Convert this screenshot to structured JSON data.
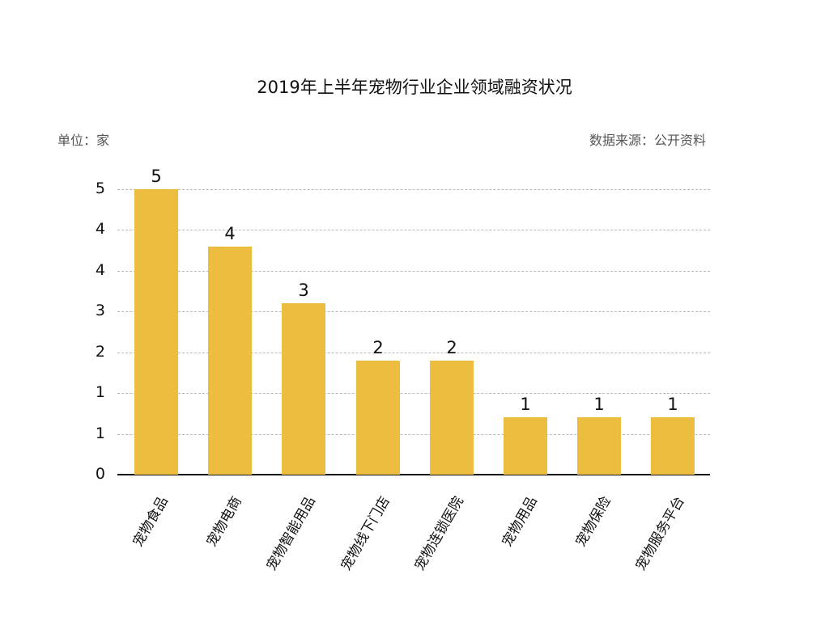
{
  "chart_data": {
    "type": "bar",
    "title": "2019年上半年宠物行业企业领域融资状况",
    "unit_label": "单位：家",
    "source_label": "数据来源：公开资料",
    "xlabel": "",
    "ylabel": "",
    "categories": [
      "宠物食品",
      "宠物电商",
      "宠物智能用品",
      "宠物线下门店",
      "宠物连锁医院",
      "宠物用品",
      "宠物保险",
      "宠物服务平台"
    ],
    "values": [
      5,
      4,
      3,
      2,
      2,
      1,
      1,
      1
    ],
    "data_labels": [
      "5",
      "4",
      "3",
      "2",
      "2",
      "1",
      "1",
      "1"
    ],
    "ylim": [
      0,
      5
    ],
    "yticks": [
      0,
      0.714,
      1.429,
      2.143,
      2.857,
      3.571,
      4.286,
      5
    ],
    "ytick_labels": [
      "0",
      "1",
      "1",
      "2",
      "3",
      "4",
      "4",
      "5"
    ],
    "grid": true,
    "grid_style": "dashed",
    "legend": null,
    "bar_color": "#EDBD40",
    "x_label_rotation": -60
  }
}
